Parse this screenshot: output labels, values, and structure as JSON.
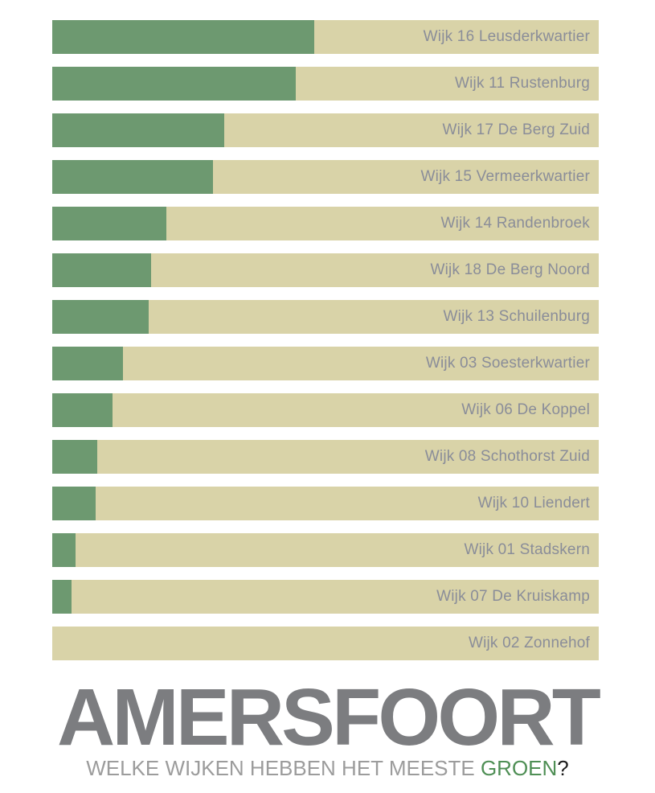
{
  "title": "AMERSFOORT",
  "subtitle": {
    "text_gray": "WELKE WIJKEN HEBBEN HET MEESTE ",
    "highlight_word": "GROEN",
    "question_mark": "?"
  },
  "colors": {
    "background": "#ffffff",
    "bar_green": "#6d9970",
    "bar_beige": "#d9d3a8",
    "bar_label": "#8a8d99",
    "title_gray": "#7c7d80",
    "subtitle_gray": "#9c9c9c",
    "subtitle_green": "#4f8f55",
    "question_mark": "#1c1c1c"
  },
  "chart_data": {
    "type": "bar",
    "orientation": "horizontal",
    "title": "AMERSFOORT",
    "subtitle": "WELKE WIJKEN HEBBEN HET MEESTE GROEN?",
    "xlabel": "",
    "ylabel": "",
    "xlim": [
      0,
      100
    ],
    "grid": false,
    "legend": "none",
    "axis_labels_shown": false,
    "value_unit": "percent of bar filled green (estimated from pixel lengths; no numeric labels shown)",
    "categories": [
      "Wijk 16 Leusderkwartier",
      "Wijk 11 Rustenburg",
      "Wijk 17 De Berg Zuid",
      "Wijk 15 Vermeerkwartier",
      "Wijk 14 Randenbroek",
      "Wijk 18 De Berg Noord",
      "Wijk 13 Schuilenburg",
      "Wijk 03 Soesterkwartier",
      "Wijk 06 De Koppel",
      "Wijk 08 Schothorst Zuid",
      "Wijk 10 Liendert",
      "Wijk 01 Stadskern",
      "Wijk 07 De Kruiskamp",
      "Wijk 02 Zonnehof"
    ],
    "series": [
      {
        "name": "groen",
        "values": [
          47.9,
          44.5,
          31.4,
          29.4,
          20.9,
          18.1,
          17.7,
          12.9,
          11.0,
          8.3,
          7.9,
          4.2,
          3.6,
          0.0
        ]
      },
      {
        "name": "rest",
        "values": [
          52.1,
          55.5,
          68.6,
          70.6,
          79.1,
          81.9,
          82.3,
          87.1,
          89.0,
          91.7,
          92.1,
          95.8,
          96.4,
          100.0
        ]
      }
    ]
  }
}
